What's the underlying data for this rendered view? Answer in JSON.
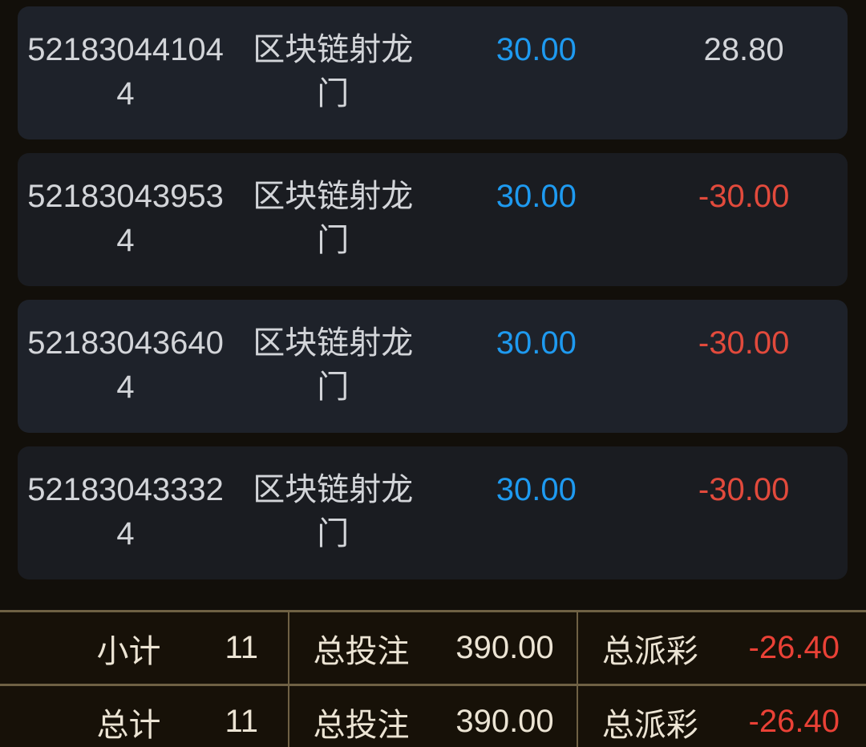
{
  "list": {
    "bets": [
      {
        "order_no": "521830441044",
        "game": "区块链射龙门",
        "bet_amount": "30.00",
        "payout": "28.80"
      },
      {
        "order_no": "521830439534",
        "game": "区块链射龙门",
        "bet_amount": "30.00",
        "payout": "-30.00"
      },
      {
        "order_no": "521830436404",
        "game": "区块链射龙门",
        "bet_amount": "30.00",
        "payout": "-30.00"
      },
      {
        "order_no": "521830433324",
        "game": "区块链射龙门",
        "bet_amount": "30.00",
        "payout": "-30.00"
      }
    ]
  },
  "summary": {
    "subtotal_row": {
      "label": "小计",
      "count": "11",
      "bet_label": "总投注",
      "bet_total": "390.00",
      "payout_label": "总派彩",
      "payout_total": "-26.40"
    },
    "total_row": {
      "label": "总计",
      "count": "11",
      "bet_label": "总投注",
      "bet_total": "390.00",
      "payout_label": "总派彩",
      "payout_total": "-26.40"
    }
  },
  "colors": {
    "page_bg": "#120f0a",
    "card_bg_odd": "#1e222a",
    "card_bg_even": "#1a1c21",
    "card_text": "#d3d5d9",
    "bet_amount_blue": "#1e9af0",
    "payout_red": "#e24a3c",
    "summary_bg": "#171108",
    "summary_text": "#ece4d4",
    "summary_red": "#ea4136",
    "summary_border": "#6f6144"
  }
}
